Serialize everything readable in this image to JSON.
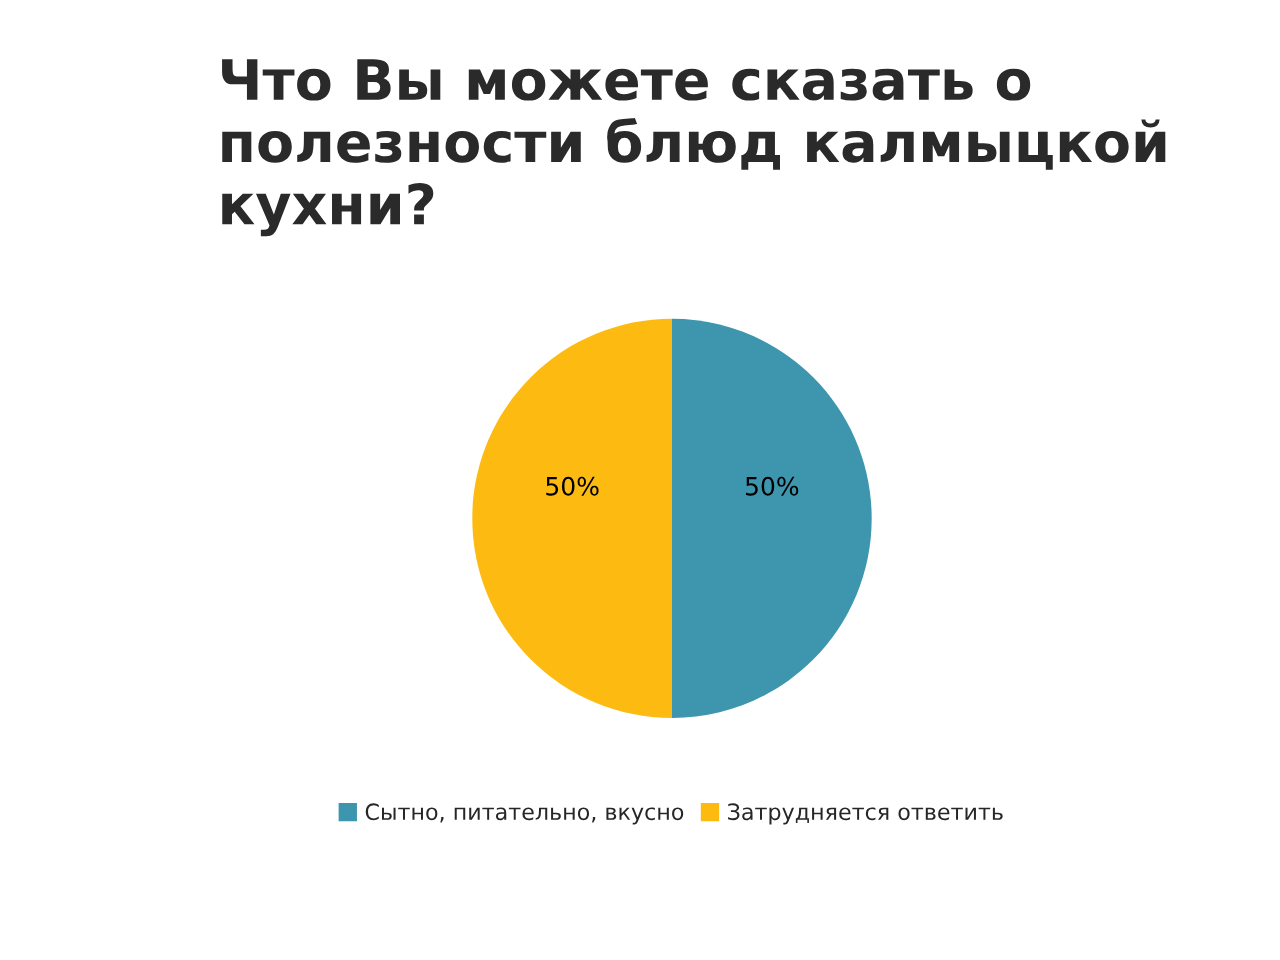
{
  "chart_data": {
    "type": "pie",
    "title": "Что Вы можете сказать о полезности блюд калмыцкой кухни?",
    "categories": [
      "Сытно, питательно, вкусно",
      "Затрудняется ответить"
    ],
    "values": [
      50,
      50
    ],
    "colors": [
      "#3d95ae",
      "#fdbb12"
    ],
    "value_labels": [
      "50%",
      "50%"
    ],
    "legend": "bottom"
  }
}
